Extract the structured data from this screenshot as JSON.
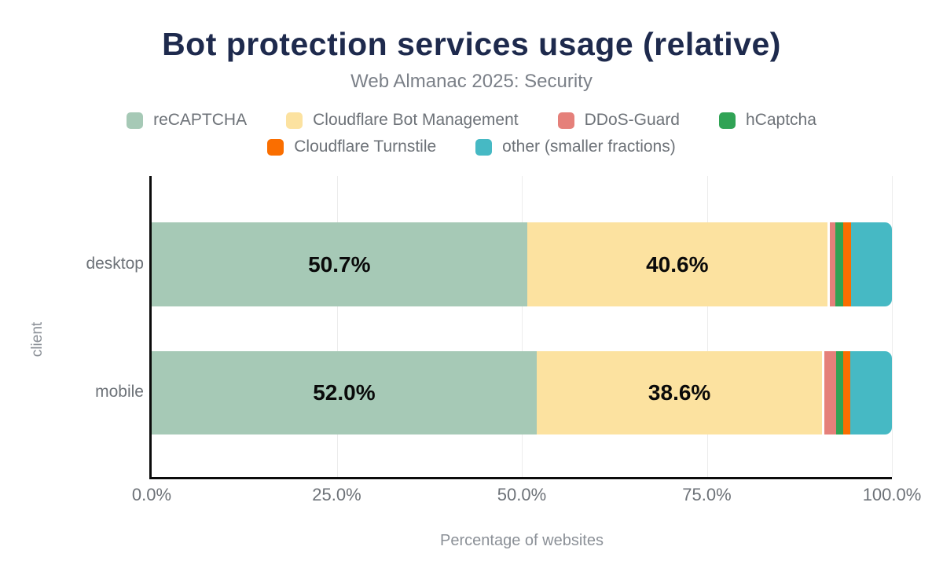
{
  "title": "Bot protection services usage (relative)",
  "subtitle": "Web Almanac 2025: Security",
  "legend": {
    "rows": [
      [
        "reCAPTCHA",
        "Cloudflare Bot Management",
        "DDoS-Guard",
        "hCaptcha"
      ],
      [
        "Cloudflare Turnstile",
        "other (smaller fractions)"
      ]
    ]
  },
  "chart_data": {
    "type": "bar",
    "orientation": "horizontal",
    "stacked": true,
    "title": "Bot protection services usage (relative)",
    "subtitle": "Web Almanac 2025: Security",
    "categories": [
      "desktop",
      "mobile"
    ],
    "series": [
      {
        "name": "reCAPTCHA",
        "color": "#a6c9b6",
        "values": [
          50.7,
          52.0
        ],
        "labels": [
          "50.7%",
          "52.0%"
        ]
      },
      {
        "name": "Cloudflare Bot Management",
        "color": "#fce2a0",
        "values": [
          40.6,
          38.6
        ],
        "labels": [
          "40.6%",
          "38.6%"
        ]
      },
      {
        "name": "DDoS-Guard",
        "color": "#e5807a",
        "values": [
          1.1,
          1.9
        ],
        "divider_before": true
      },
      {
        "name": "hCaptcha",
        "color": "#30a355",
        "values": [
          1.0,
          0.9
        ]
      },
      {
        "name": "Cloudflare Turnstile",
        "color": "#fa6e00",
        "values": [
          1.1,
          1.0
        ]
      },
      {
        "name": "other (smaller fractions)",
        "color": "#46b9c4",
        "values": [
          5.5,
          5.6
        ]
      }
    ],
    "xlabel": "Percentage of websites",
    "ylabel": "client",
    "x_ticks": [
      "0.0%",
      "25.0%",
      "50.0%",
      "75.0%",
      "100.0%"
    ],
    "xlim": [
      0,
      100
    ],
    "grid": true,
    "legend_position": "top",
    "axis_color": "#0b0b0b",
    "gridline_color": "#ececec",
    "title_color": "#1e2a4d",
    "label_color": "#6d7278"
  }
}
